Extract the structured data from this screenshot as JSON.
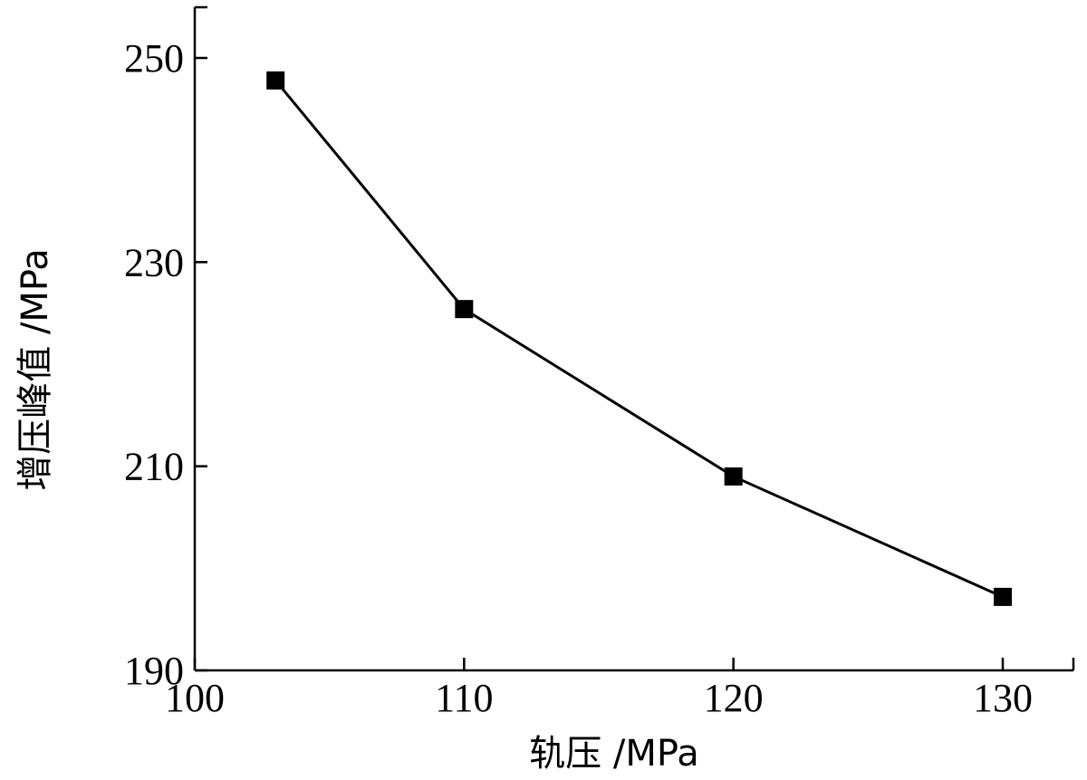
{
  "chart_data": {
    "type": "line",
    "xlabel": "轨压 /MPa",
    "ylabel": "增压峰值 /MPa",
    "xlim": [
      100,
      133
    ],
    "ylim": [
      190,
      255
    ],
    "xticks": [
      100,
      110,
      120,
      130
    ],
    "yticks": [
      190,
      210,
      230,
      250
    ],
    "x_tick_labels": [
      "100",
      "110",
      "120",
      "130"
    ],
    "y_tick_labels": [
      "190",
      "210",
      "230",
      "250"
    ],
    "grid": false,
    "marker": "square",
    "series": [
      {
        "x": [
          103,
          110,
          120,
          130
        ],
        "y": [
          247.8,
          225.4,
          209.0,
          197.2
        ]
      }
    ]
  }
}
